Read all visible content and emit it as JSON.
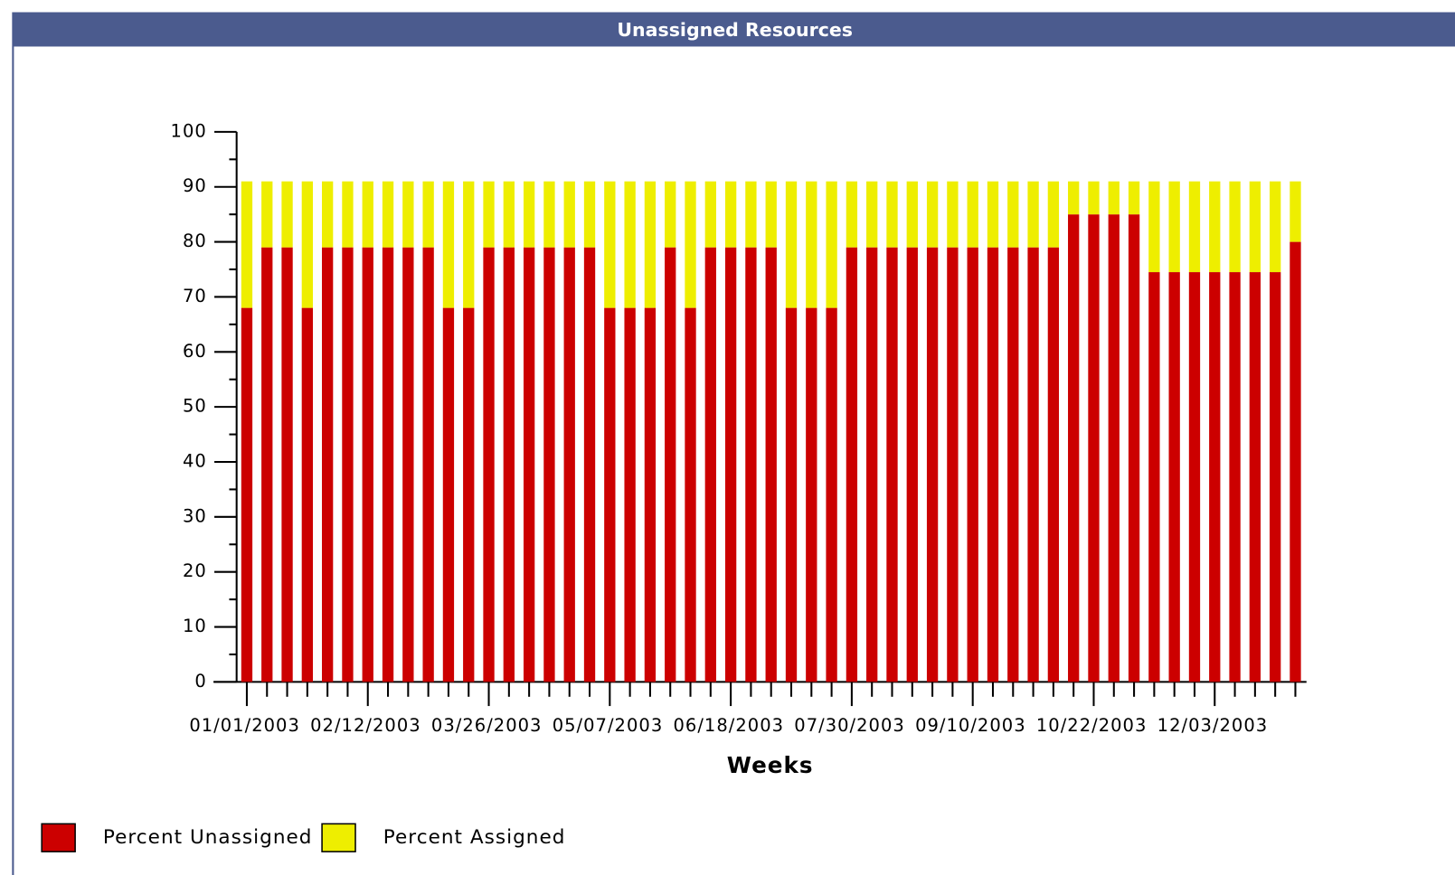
{
  "chart_data": {
    "type": "stacked_bar",
    "title": "Unassigned Resources",
    "x_label": "Weeks",
    "categories": [
      "01/01/2003",
      null,
      null,
      null,
      null,
      null,
      "02/12/2003",
      null,
      null,
      null,
      null,
      null,
      "03/26/2003",
      null,
      null,
      null,
      null,
      null,
      "05/07/2003",
      null,
      null,
      null,
      null,
      null,
      "06/18/2003",
      null,
      null,
      null,
      null,
      null,
      "07/30/2003",
      null,
      null,
      null,
      null,
      null,
      "09/10/2003",
      null,
      null,
      null,
      null,
      null,
      "10/22/2003",
      null,
      null,
      null,
      null,
      null,
      "12/03/2003",
      null,
      null,
      null,
      null
    ],
    "series": [
      {
        "name": "Percent Unassigned",
        "color": "#cc0000",
        "values": [
          68,
          79,
          79,
          68,
          79,
          79,
          79,
          79,
          79,
          79,
          68,
          68,
          79,
          79,
          79,
          79,
          79,
          79,
          68,
          68,
          68,
          79,
          68,
          79,
          79,
          79,
          79,
          68,
          68,
          68,
          79,
          79,
          79,
          79,
          79,
          79,
          79,
          79,
          79,
          79,
          79,
          85,
          85,
          85,
          85,
          74.5,
          74.5,
          74.5,
          74.5,
          74.5,
          74.5,
          74.5,
          80
        ]
      },
      {
        "name": "Percent Assigned",
        "color": "#eeee00",
        "values": [
          23,
          12,
          12,
          23,
          12,
          12,
          12,
          12,
          12,
          12,
          23,
          23,
          12,
          12,
          12,
          12,
          12,
          12,
          23,
          23,
          23,
          12,
          23,
          12,
          12,
          12,
          12,
          23,
          23,
          23,
          12,
          12,
          12,
          12,
          12,
          12,
          12,
          12,
          12,
          12,
          12,
          6,
          6,
          6,
          6,
          16.5,
          16.5,
          16.5,
          16.5,
          16.5,
          16.5,
          16.5,
          11
        ]
      }
    ],
    "ylim": [
      0,
      100
    ],
    "yticks": [
      0,
      10,
      20,
      30,
      40,
      50,
      60,
      70,
      80,
      90,
      100
    ],
    "minor_yticks": [
      5,
      15,
      25,
      35,
      45,
      55,
      65,
      75,
      85,
      95
    ],
    "legend": "bottom-left"
  }
}
